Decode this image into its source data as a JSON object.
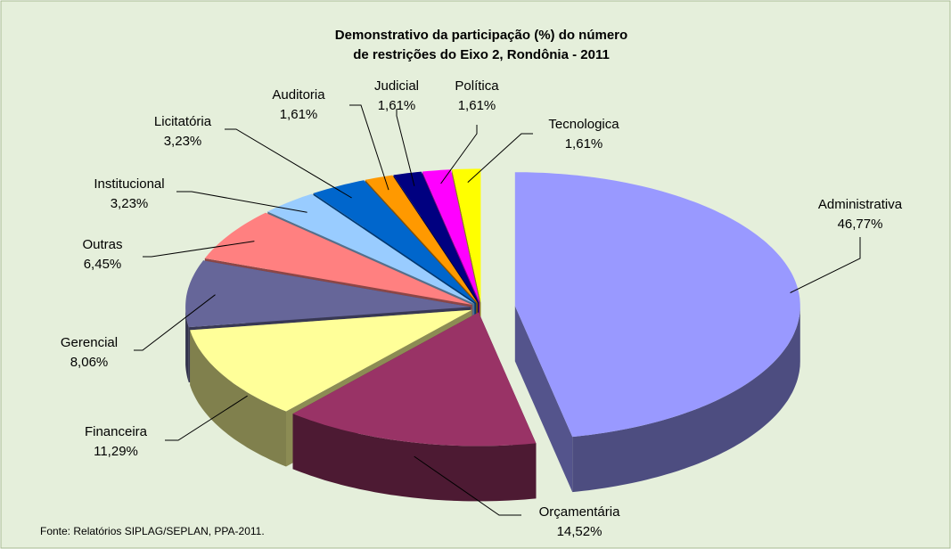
{
  "chart_data": {
    "type": "pie3d",
    "title": [
      "Demonstrativo da participação (%) do número",
      "de restrições do Eixo 2, Rondônia - 2011"
    ],
    "categories": [
      "Administrativa",
      "Orçamentária",
      "Financeira",
      "Gerencial",
      "Outras",
      "Institucional",
      "Licitatória",
      "Auditoria",
      "Judicial",
      "Política",
      "Tecnologica"
    ],
    "values": [
      46.77,
      14.52,
      11.29,
      8.06,
      6.45,
      3.23,
      3.23,
      1.61,
      1.61,
      1.61,
      1.61
    ],
    "value_labels": [
      "46,77%",
      "14,52%",
      "11,29%",
      "8,06%",
      "6,45%",
      "3,23%",
      "3,23%",
      "1,61%",
      "1,61%",
      "1,61%",
      "1,61%"
    ],
    "colors": [
      "#9999ff",
      "#993366",
      "#ffff99",
      "#666699",
      "#ff8080",
      "#99ccff",
      "#0066cc",
      "#ff9900",
      "#000080",
      "#ff00ff",
      "#ffff00"
    ],
    "source": "Fonte: Relatórios SIPLAG/SEPLAN, PPA-2011."
  }
}
